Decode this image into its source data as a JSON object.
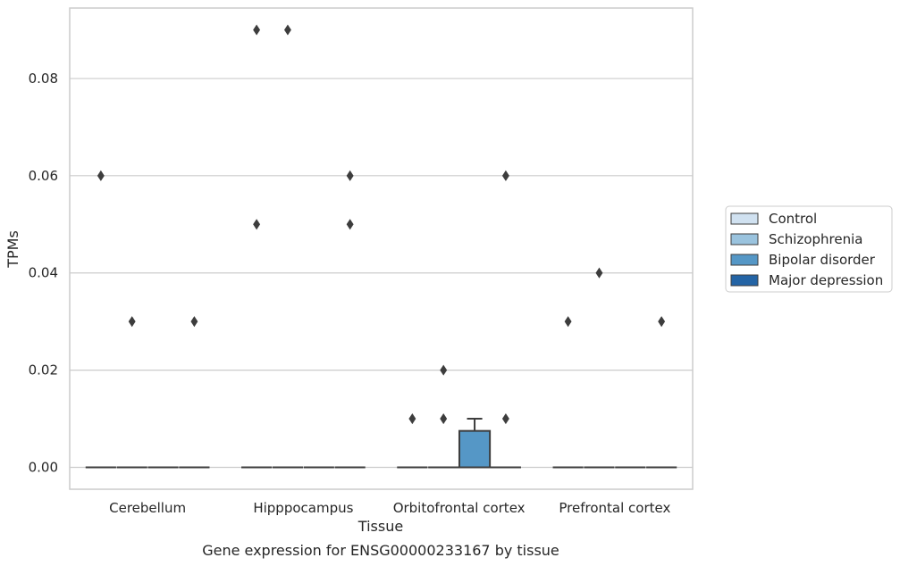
{
  "caption": "Gene expression for ENSG00000233167 by tissue",
  "chart_data": {
    "type": "box",
    "xlabel": "Tissue",
    "ylabel": "TPMs",
    "ylim": [
      -0.0045,
      0.0945
    ],
    "yticks": [
      0.0,
      0.02,
      0.04,
      0.06,
      0.08
    ],
    "ytick_labels": [
      "0.00",
      "0.02",
      "0.04",
      "0.06",
      "0.08"
    ],
    "grid": "horizontal",
    "legend_position": "right",
    "categories": [
      "Cerebellum",
      "Hipppocampus",
      "Orbitofrontal cortex",
      "Prefrontal cortex"
    ],
    "series": [
      {
        "name": "Control",
        "color": "#d0e1f0",
        "boxes": [
          {
            "q1": 0,
            "median": 0,
            "q3": 0,
            "whisker_low": 0,
            "whisker_high": 0,
            "outliers": [
              0.06
            ]
          },
          {
            "q1": 0,
            "median": 0,
            "q3": 0,
            "whisker_low": 0,
            "whisker_high": 0,
            "outliers": [
              0.05,
              0.09
            ]
          },
          {
            "q1": 0,
            "median": 0,
            "q3": 0,
            "whisker_low": 0,
            "whisker_high": 0,
            "outliers": [
              0.01
            ]
          },
          {
            "q1": 0,
            "median": 0,
            "q3": 0,
            "whisker_low": 0,
            "whisker_high": 0,
            "outliers": [
              0.03
            ]
          }
        ]
      },
      {
        "name": "Schizophrenia",
        "color": "#9ac3de",
        "boxes": [
          {
            "q1": 0,
            "median": 0,
            "q3": 0,
            "whisker_low": 0,
            "whisker_high": 0,
            "outliers": [
              0.03
            ]
          },
          {
            "q1": 0,
            "median": 0,
            "q3": 0,
            "whisker_low": 0,
            "whisker_high": 0,
            "outliers": [
              0.09
            ]
          },
          {
            "q1": 0,
            "median": 0,
            "q3": 0,
            "whisker_low": 0,
            "whisker_high": 0,
            "outliers": [
              0.01,
              0.02
            ]
          },
          {
            "q1": 0,
            "median": 0,
            "q3": 0,
            "whisker_low": 0,
            "whisker_high": 0,
            "outliers": [
              0.04
            ]
          }
        ]
      },
      {
        "name": "Bipolar disorder",
        "color": "#5597c6",
        "boxes": [
          {
            "q1": 0,
            "median": 0,
            "q3": 0,
            "whisker_low": 0,
            "whisker_high": 0,
            "outliers": []
          },
          {
            "q1": 0,
            "median": 0,
            "q3": 0,
            "whisker_low": 0,
            "whisker_high": 0,
            "outliers": []
          },
          {
            "q1": 0,
            "median": 0,
            "q3": 0.0075,
            "whisker_low": 0,
            "whisker_high": 0.01,
            "outliers": []
          },
          {
            "q1": 0,
            "median": 0,
            "q3": 0,
            "whisker_low": 0,
            "whisker_high": 0,
            "outliers": []
          }
        ]
      },
      {
        "name": "Major depression",
        "color": "#2464a5",
        "boxes": [
          {
            "q1": 0,
            "median": 0,
            "q3": 0,
            "whisker_low": 0,
            "whisker_high": 0,
            "outliers": [
              0.03
            ]
          },
          {
            "q1": 0,
            "median": 0,
            "q3": 0,
            "whisker_low": 0,
            "whisker_high": 0,
            "outliers": [
              0.05,
              0.06
            ]
          },
          {
            "q1": 0,
            "median": 0,
            "q3": 0,
            "whisker_low": 0,
            "whisker_high": 0,
            "outliers": [
              0.01,
              0.06
            ]
          },
          {
            "q1": 0,
            "median": 0,
            "q3": 0,
            "whisker_low": 0,
            "whisker_high": 0,
            "outliers": [
              0.03
            ]
          }
        ]
      }
    ]
  }
}
